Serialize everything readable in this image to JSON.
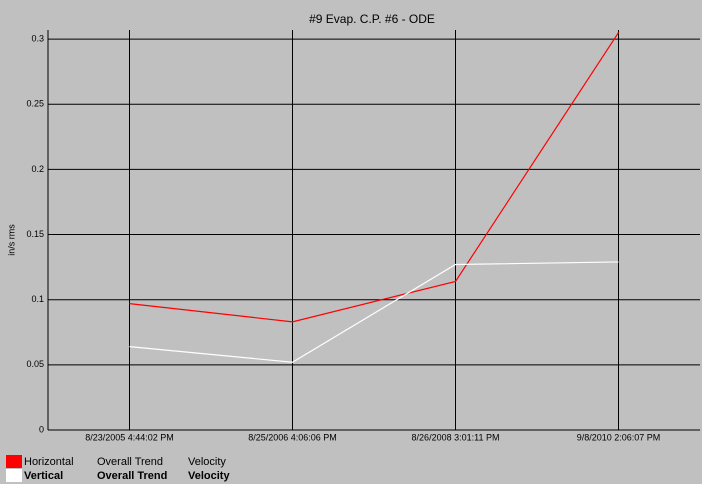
{
  "chart_data": {
    "type": "line",
    "title": "#9 Evap. C.P. #6 - ODE",
    "y_label": "in/s rms",
    "categories": [
      "8/23/2005 4:44:02 PM",
      "8/25/2006 4:06:06 PM",
      "8/26/2008 3:01:11 PM",
      "9/8/2010 2:06:07 PM"
    ],
    "series": [
      {
        "name": "Horizontal",
        "trend": "Overall Trend",
        "measure": "Velocity",
        "color": "#ff0000",
        "values": [
          0.097,
          0.083,
          0.114,
          0.305
        ]
      },
      {
        "name": "Vertical",
        "trend": "Overall Trend",
        "measure": "Velocity",
        "color": "#ffffff",
        "values": [
          0.064,
          0.052,
          0.127,
          0.129
        ]
      }
    ],
    "ylim": [
      0,
      0.307
    ],
    "yticks": [
      0,
      0.05,
      0.1,
      0.15,
      0.2,
      0.25,
      0.3
    ],
    "grid": true
  }
}
